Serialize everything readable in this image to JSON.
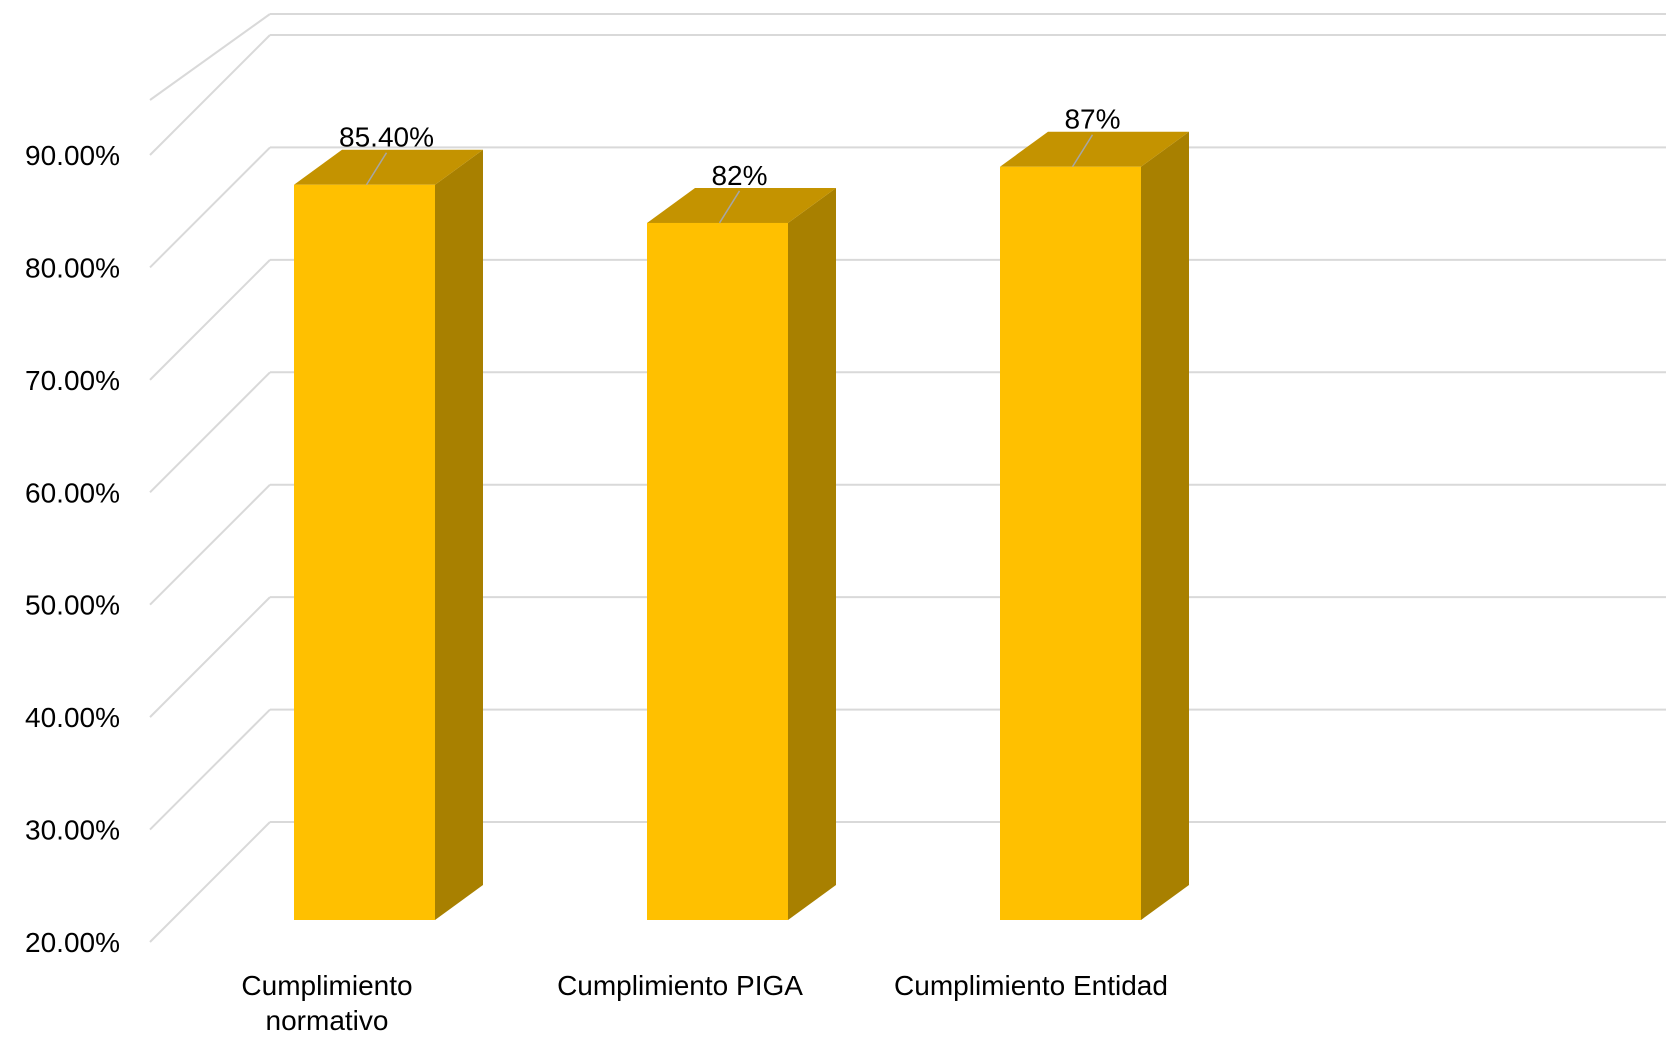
{
  "chart_data": {
    "type": "bar",
    "style": "3d-column",
    "categories": [
      [
        "Cumplimiento",
        "normativo"
      ],
      [
        "Cumplimiento PIGA"
      ],
      [
        "Cumplimiento Entidad"
      ]
    ],
    "values": [
      85.4,
      82,
      87
    ],
    "data_labels": [
      "85.40%",
      "82%",
      "87%"
    ],
    "y_ticks": [
      20,
      30,
      40,
      50,
      60,
      70,
      80,
      90
    ],
    "y_tick_labels": [
      "20.00%",
      "30.00%",
      "40.00%",
      "50.00%",
      "60.00%",
      "70.00%",
      "80.00%",
      "90.00%"
    ],
    "ylim": [
      20,
      90
    ],
    "grid": true,
    "legend": "none",
    "colors": {
      "bar_front": "#FFC000",
      "bar_top": "#C49300",
      "bar_side": "#A88000",
      "grid": "#D9D9D9",
      "leader": "#A6A6A6"
    }
  }
}
